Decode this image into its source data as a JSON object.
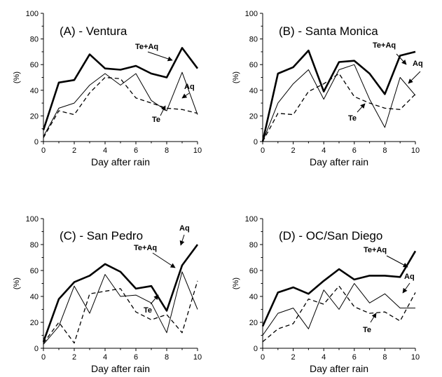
{
  "chart_data": [
    {
      "type": "line",
      "title": "(A) - Ventura",
      "xlabel": "Day after rain",
      "ylabel": "(%)",
      "xlim": [
        0,
        10
      ],
      "ylim": [
        0,
        100
      ],
      "xticks": [
        0,
        2,
        4,
        6,
        8,
        10
      ],
      "yticks": [
        0,
        20,
        40,
        60,
        80,
        100
      ],
      "grid": false,
      "x": [
        0,
        1,
        2,
        3,
        4,
        5,
        6,
        7,
        8,
        9,
        10
      ],
      "series": [
        {
          "name": "Te+Aq",
          "values": [
            9,
            46,
            48,
            68,
            57,
            56,
            59,
            53,
            50,
            73,
            57
          ],
          "style": "thick"
        },
        {
          "name": "Aq",
          "values": [
            4,
            26,
            30,
            44,
            53,
            44,
            53,
            32,
            24,
            54,
            21
          ],
          "style": "thin"
        },
        {
          "name": "Te",
          "values": [
            3,
            24,
            21,
            38,
            50,
            49,
            34,
            30,
            26,
            25,
            22
          ],
          "style": "dashed"
        }
      ]
    },
    {
      "type": "line",
      "title": "(B) - Santa Monica",
      "xlabel": "Day after rain",
      "ylabel": "(%)",
      "xlim": [
        0,
        10
      ],
      "ylim": [
        0,
        100
      ],
      "xticks": [
        0,
        2,
        4,
        6,
        8,
        10
      ],
      "yticks": [
        0,
        20,
        40,
        60,
        80,
        100
      ],
      "grid": false,
      "x": [
        0,
        1,
        2,
        3,
        4,
        5,
        6,
        7,
        8,
        9,
        10
      ],
      "series": [
        {
          "name": "Te+Aq",
          "values": [
            0,
            53,
            58,
            71,
            39,
            62,
            63,
            53,
            37,
            67,
            70
          ],
          "style": "thick"
        },
        {
          "name": "Aq",
          "values": [
            0,
            30,
            45,
            56,
            33,
            56,
            60,
            33,
            11,
            50,
            36
          ],
          "style": "thin"
        },
        {
          "name": "Te",
          "values": [
            0,
            22,
            21,
            39,
            45,
            53,
            35,
            30,
            26,
            25,
            37
          ],
          "style": "dashed"
        }
      ]
    },
    {
      "type": "line",
      "title": "(C) - San Pedro",
      "xlabel": "Day after rain",
      "ylabel": "(%)",
      "xlim": [
        0,
        10
      ],
      "ylim": [
        0,
        100
      ],
      "xticks": [
        0,
        2,
        4,
        6,
        8,
        10
      ],
      "yticks": [
        0,
        20,
        40,
        60,
        80,
        100
      ],
      "grid": false,
      "x": [
        0,
        1,
        2,
        3,
        4,
        5,
        6,
        7,
        8,
        9,
        10
      ],
      "series": [
        {
          "name": "Te+Aq",
          "values": [
            5,
            38,
            51,
            56,
            65,
            59,
            46,
            48,
            29,
            64,
            80
          ],
          "style": "thick"
        },
        {
          "name": "Aq",
          "values": [
            3,
            17,
            48,
            27,
            57,
            40,
            41,
            35,
            12,
            59,
            30
          ],
          "style": "thin"
        },
        {
          "name": "Te",
          "values": [
            4,
            20,
            4,
            42,
            44,
            46,
            28,
            22,
            26,
            12,
            52
          ],
          "style": "dashed"
        }
      ]
    },
    {
      "type": "line",
      "title": "(D) - OC/San Diego",
      "xlabel": "Day after rain",
      "ylabel": "(%)",
      "xlim": [
        0,
        10
      ],
      "ylim": [
        0,
        100
      ],
      "xticks": [
        0,
        2,
        4,
        6,
        8,
        10
      ],
      "yticks": [
        0,
        20,
        40,
        60,
        80,
        100
      ],
      "grid": false,
      "x": [
        0,
        1,
        2,
        3,
        4,
        5,
        6,
        7,
        8,
        9,
        10
      ],
      "series": [
        {
          "name": "Te+Aq",
          "values": [
            17,
            43,
            47,
            42,
            52,
            61,
            53,
            56,
            56,
            55,
            75
          ],
          "style": "thick"
        },
        {
          "name": "Aq",
          "values": [
            10,
            27,
            31,
            15,
            45,
            30,
            50,
            35,
            42,
            31,
            31
          ],
          "style": "thin"
        },
        {
          "name": "Te",
          "values": [
            5,
            15,
            19,
            38,
            34,
            48,
            32,
            27,
            28,
            21,
            43
          ],
          "style": "dashed"
        }
      ]
    }
  ],
  "colors": {
    "line": "#000000",
    "axis": "#000000",
    "background": "#ffffff"
  }
}
